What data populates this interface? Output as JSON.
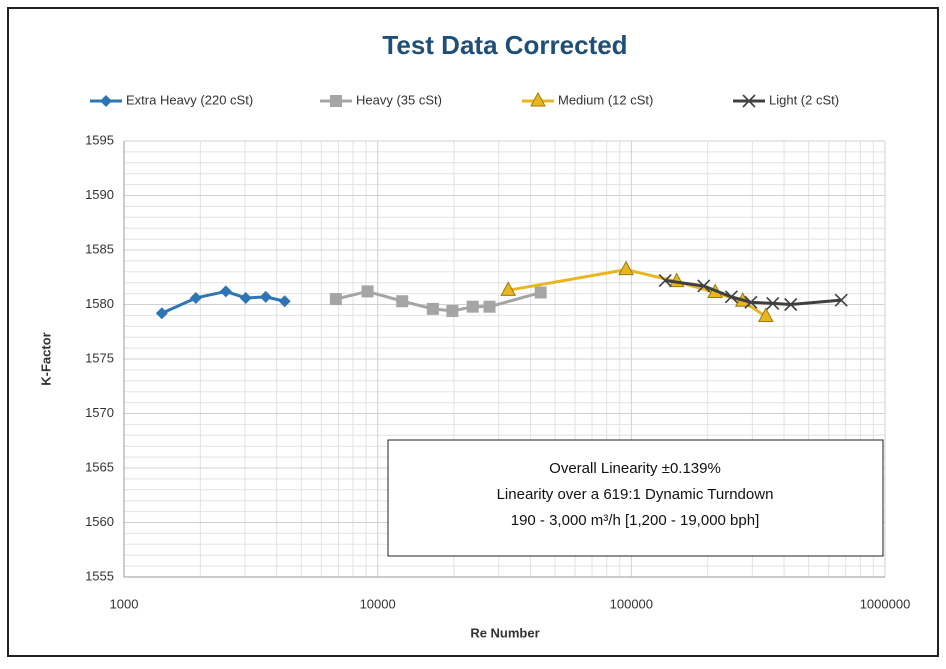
{
  "chart_data": {
    "type": "line",
    "title": "Test Data Corrected",
    "x_label": "Re Number",
    "y_label": "K-Factor",
    "log_x": true,
    "grid": true,
    "minor_grid": true,
    "legend": "top",
    "xlim": [
      1000,
      1000000
    ],
    "xticks": [
      1000,
      10000,
      100000,
      1000000
    ],
    "ylim": [
      1555,
      1595
    ],
    "yticks": [
      1555,
      1560,
      1565,
      1570,
      1575,
      1580,
      1585,
      1590,
      1595
    ],
    "series": [
      {
        "name": "Extra Heavy (220 cSt)",
        "color": "#2e75b6",
        "marker": "diamond",
        "x": [
          1410,
          1920,
          2520,
          3020,
          3620,
          4300
        ],
        "values": [
          1579.2,
          1580.6,
          1581.2,
          1580.6,
          1580.7,
          1580.3
        ]
      },
      {
        "name": "Heavy (35 cSt)",
        "color": "#a5a5a5",
        "marker": "square",
        "x": [
          6840,
          9120,
          12500,
          16500,
          19700,
          23700,
          27600,
          43900
        ],
        "values": [
          1580.5,
          1581.2,
          1580.3,
          1579.6,
          1579.4,
          1579.8,
          1579.8,
          1581.1
        ]
      },
      {
        "name": "Medium (12 cSt)",
        "color": "#e8b620",
        "marker": "triangle",
        "x": [
          32700,
          95300,
          151000,
          214000,
          275000,
          339000
        ],
        "values": [
          1581.3,
          1583.2,
          1582.1,
          1581.1,
          1580.3,
          1578.9
        ]
      },
      {
        "name": "Light (2 cSt)",
        "color": "#404040",
        "marker": "x",
        "x": [
          136000,
          193000,
          248000,
          296000,
          361000,
          425000,
          672000
        ],
        "values": [
          1582.2,
          1581.7,
          1580.7,
          1580.2,
          1580.1,
          1580.0,
          1580.4
        ]
      }
    ],
    "annotation": [
      "Overall Linearity ±0.139%",
      "Linearity over a 619:1 Dynamic Turndown",
      "190 - 3,000 m³/h [1,200 - 19,000 bph]"
    ]
  }
}
